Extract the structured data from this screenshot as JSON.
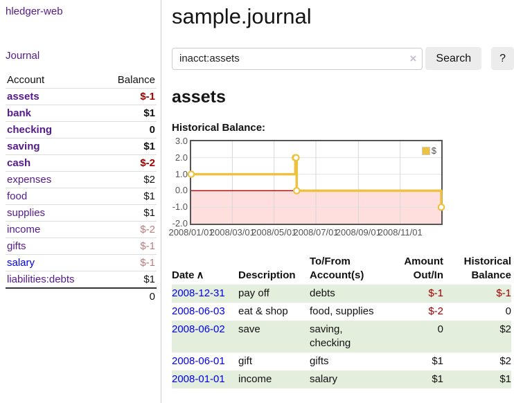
{
  "app": {
    "brand": "hledger-web",
    "nav": {
      "journal": "Journal"
    }
  },
  "sidebar": {
    "headers": {
      "account": "Account",
      "balance": "Balance"
    },
    "accounts": [
      {
        "name": "assets",
        "balance": "$-1"
      },
      {
        "name": "bank",
        "balance": "$1"
      },
      {
        "name": "checking",
        "balance": "0"
      },
      {
        "name": "saving",
        "balance": "$1"
      },
      {
        "name": "cash",
        "balance": "$-2"
      },
      {
        "name": "expenses",
        "balance": "$2"
      },
      {
        "name": "food",
        "balance": "$1"
      },
      {
        "name": "supplies",
        "balance": "$1"
      },
      {
        "name": "income",
        "balance": "$-2"
      },
      {
        "name": "gifts",
        "balance": "$-1"
      },
      {
        "name": "salary",
        "balance": "$-1"
      },
      {
        "name": "liabilities:debts",
        "balance": "$1"
      }
    ],
    "total": "0"
  },
  "main": {
    "title": "sample.journal",
    "search": {
      "value": "inacct:assets",
      "clear_icon": "×",
      "button_label": "Search",
      "help_label": "?"
    },
    "account_heading": "assets",
    "chart_heading": "Historical Balance:"
  },
  "chart_data": {
    "type": "line",
    "step": true,
    "title": "Historical Balance",
    "series": [
      {
        "name": "$",
        "color": "#edc240",
        "points": [
          [
            "2008-01-01",
            1
          ],
          [
            "2008-06-01",
            2
          ],
          [
            "2008-06-02",
            2
          ],
          [
            "2008-06-03",
            0
          ],
          [
            "2008-12-31",
            -1
          ]
        ]
      }
    ],
    "xlim": [
      "2008-01-01",
      "2008-12-31"
    ],
    "ylim": [
      -2,
      3
    ],
    "y_ticks": [
      "3.0",
      "2.0",
      "1.0",
      "0.0",
      "-1.0",
      "-2.0"
    ],
    "x_ticks": [
      "2008/01/01",
      "2008/03/01",
      "2008/05/01",
      "2008/07/01",
      "2008/09/01",
      "2008/11/01"
    ],
    "legend": {
      "label": "$",
      "position": "top-right"
    },
    "grid": true,
    "negative_region_color": "#ffdede",
    "zero_line_color": "#aa1111",
    "border_color": "#545454"
  },
  "register": {
    "headers": {
      "date": "Date",
      "sort_icon": "∧",
      "description": "Description",
      "accounts": "To/From Account(s)",
      "amount": "Amount Out/In",
      "balance": "Historical Balance"
    },
    "rows": [
      {
        "date": "2008-12-31",
        "description": "pay off",
        "accounts": "debts",
        "amount": "$-1",
        "balance": "$-1"
      },
      {
        "date": "2008-06-03",
        "description": "eat & shop",
        "accounts": "food, supplies",
        "amount": "$-2",
        "balance": "0"
      },
      {
        "date": "2008-06-02",
        "description": "save",
        "accounts": "saving, checking",
        "amount": "0",
        "balance": "$2"
      },
      {
        "date": "2008-06-01",
        "description": "gift",
        "accounts": "gifts",
        "amount": "$1",
        "balance": "$2"
      },
      {
        "date": "2008-01-01",
        "description": "income",
        "accounts": "salary",
        "amount": "$1",
        "balance": "$1"
      }
    ]
  },
  "colors": {
    "link_purple": "#551a8b",
    "link_blue": "#0000ee",
    "negative_strong": "#a40000",
    "negative_muted": "#bc7b7b",
    "row_green": "#e3eedd",
    "series_yellow": "#edc240"
  }
}
